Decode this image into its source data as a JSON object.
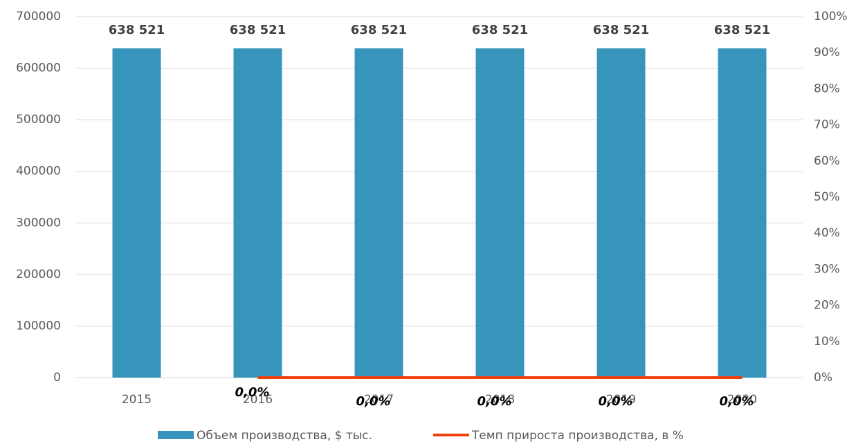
{
  "chart_data": {
    "type": "bar",
    "categories": [
      "2015",
      "2016",
      "2017",
      "2018",
      "2019",
      "2020"
    ],
    "series": [
      {
        "name": "Объем производства, $ тыс.",
        "type": "bar",
        "color": "#3795bc",
        "values": [
          638521,
          638521,
          638521,
          638521,
          638521,
          638521
        ],
        "value_labels": [
          "638 521",
          "638 521",
          "638 521",
          "638 521",
          "638 521",
          "638 521"
        ]
      },
      {
        "name": "Темп прироста производства, в %",
        "type": "line",
        "axis": "y2",
        "color": "#f0410c",
        "values": [
          null,
          0,
          0,
          0,
          0,
          0
        ],
        "value_labels": [
          null,
          "0,0%",
          "0,0%",
          "0,0%",
          "0,0%",
          "0,0%"
        ]
      }
    ],
    "ylim": [
      0,
      700000
    ],
    "yticks": [
      0,
      100000,
      200000,
      300000,
      400000,
      500000,
      600000,
      700000
    ],
    "y2lim": [
      0,
      100
    ],
    "y2ticks": [
      {
        "value": 0,
        "label": "0%"
      },
      {
        "value": 10,
        "label": "10%"
      },
      {
        "value": 20,
        "label": "20%"
      },
      {
        "value": 30,
        "label": "30%"
      },
      {
        "value": 40,
        "label": "40%"
      },
      {
        "value": 50,
        "label": "50%"
      },
      {
        "value": 60,
        "label": "60%"
      },
      {
        "value": 70,
        "label": "70%"
      },
      {
        "value": 80,
        "label": "80%"
      },
      {
        "value": 90,
        "label": "90%"
      },
      {
        "value": 100,
        "label": "100%"
      }
    ],
    "grid": true,
    "legend": "bottom"
  }
}
